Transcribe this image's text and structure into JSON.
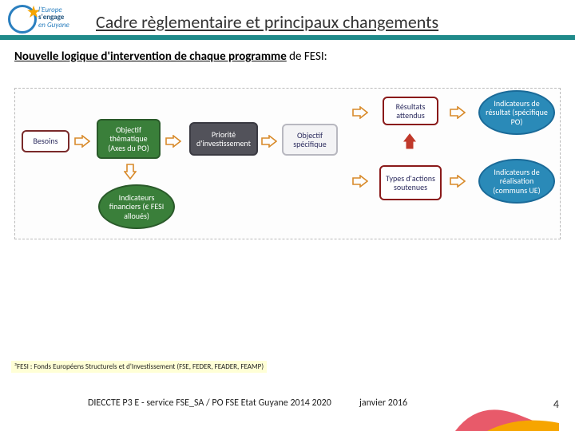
{
  "logo": {
    "line1": "l'Europe",
    "line2": "s'engage",
    "line3": "en Guyane"
  },
  "title": "Cadre règlementaire et principaux changements",
  "subtitle_u": "Nouvelle logique d'intervention de chaque programme",
  "subtitle_rest": " de FESI:",
  "nodes": {
    "besoins": {
      "label": "Besoins",
      "bg": "#ffffff",
      "fg": "#2e2e60",
      "border": "#7a2a2a"
    },
    "objectif": {
      "label": "Objectif thématique (Axes du PO)",
      "bg": "#3a7f3a",
      "fg": "#ffffff",
      "border": "#2a5a2a"
    },
    "priorite": {
      "label": "Priorité d'investissement",
      "bg": "#52525a",
      "fg": "#ffffff",
      "border": "#3a3a42"
    },
    "specifique": {
      "label": "Objectif spécifique",
      "bg": "#f3f3f5",
      "fg": "#2e2e60",
      "border": "#b8b8c0"
    },
    "resultats": {
      "label": "Résultats attendus",
      "bg": "#ffffff",
      "fg": "#2e2e60",
      "border": "#8a1a1a"
    },
    "types": {
      "label": "Types d'actions soutenues",
      "bg": "#ffffff",
      "fg": "#2e2e60",
      "border": "#8a1a1a"
    },
    "ind_res": {
      "label": "Indicateurs de résultat (spécifique PO)",
      "bg": "#2a8ab8",
      "fg": "#ffffff",
      "border": "#1a6a98"
    },
    "ind_real": {
      "label": "Indicateurs de réalisation (communs UE)",
      "bg": "#2a8ab8",
      "fg": "#ffffff",
      "border": "#1a6a98"
    },
    "ind_fin": {
      "label": "Indicateurs financiers (€ FESI alloués)",
      "bg": "#3a7f3a",
      "fg": "#ffffff",
      "border": "#2a5a2a"
    }
  },
  "arrow_colors": {
    "outline": "#d88a2a",
    "up_fill": "#c0392b"
  },
  "footnote": "³FESI : Fonds Européens Structurels et d'Investissement (FSE, FEDER, FEADER, FEAMP)",
  "footer_text": "DIECCTE P3 E - service FSE_SA / PO FSE Etat Guyane 2014 2020",
  "footer_date": "janvier 2016",
  "page_number": "4",
  "accent_colors": {
    "pink": "#e85a6a",
    "yellow": "#f6a500"
  }
}
